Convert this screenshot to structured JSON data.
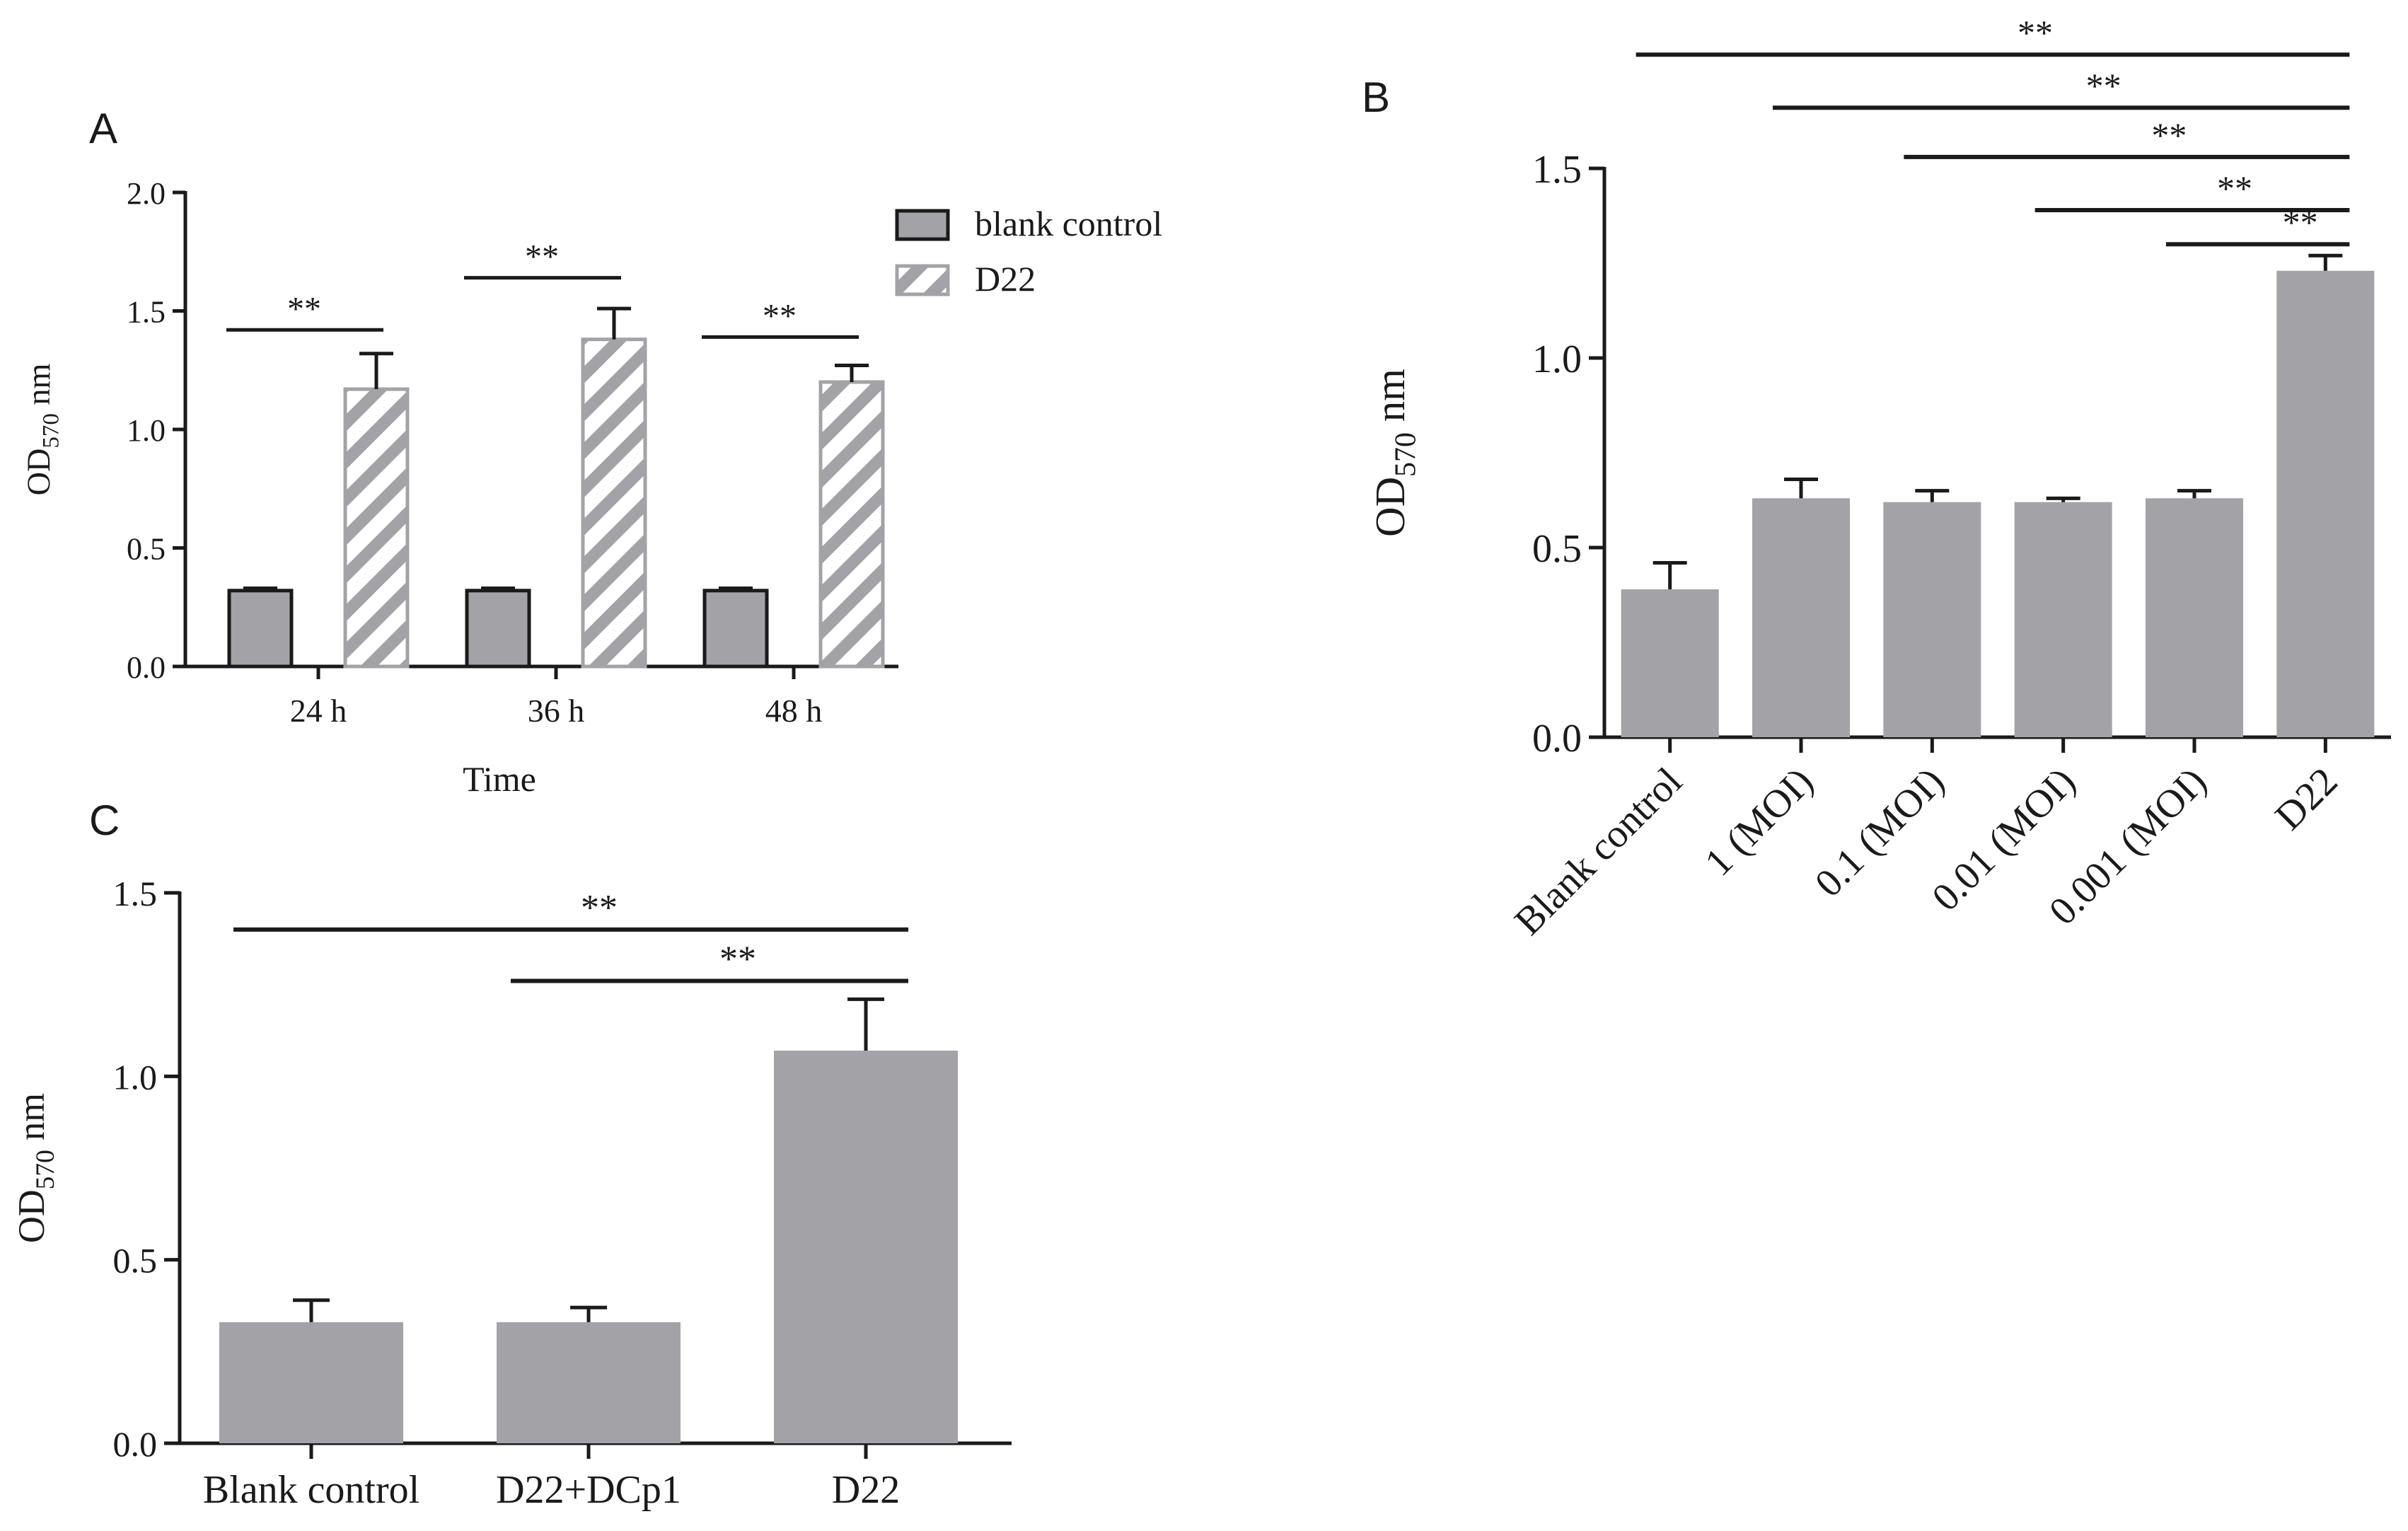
{
  "chart_data": [
    {
      "panel": "A",
      "type": "bar",
      "xlabel": "Time",
      "ylabel_main": "OD",
      "ylabel_sub": "570",
      "ylabel_unit": " nm",
      "ylim": [
        0,
        2.0
      ],
      "yticks": [
        0.0,
        0.5,
        1.0,
        1.5,
        2.0
      ],
      "ytick_labels": [
        "0.0",
        "0.5",
        "1.0",
        "1.5",
        "2.0"
      ],
      "categories": [
        "24 h",
        "36 h",
        "48 h"
      ],
      "legend_position": "top-right",
      "series": [
        {
          "name": "blank control",
          "values": [
            0.32,
            0.32,
            0.32
          ],
          "errors": [
            0.01,
            0.01,
            0.01
          ],
          "fill": "#a3a3a7",
          "pattern": "solid"
        },
        {
          "name": "D22",
          "values": [
            1.17,
            1.38,
            1.2
          ],
          "errors": [
            0.15,
            0.13,
            0.07
          ],
          "fill": "#a3a3a7",
          "pattern": "hatched"
        }
      ],
      "significance": [
        {
          "label": "**",
          "from": 0,
          "to": 0,
          "y": 1.42
        },
        {
          "label": "**",
          "from": 1,
          "to": 1,
          "y": 1.64
        },
        {
          "label": "**",
          "from": 2,
          "to": 2,
          "y": 1.39
        }
      ]
    },
    {
      "panel": "B",
      "type": "bar",
      "ylabel_main": "OD",
      "ylabel_sub": "570",
      "ylabel_unit": " nm",
      "ylim": [
        0,
        1.5
      ],
      "yticks": [
        0.0,
        0.5,
        1.0,
        1.5
      ],
      "ytick_labels": [
        "0.0",
        "0.5",
        "1.0",
        "1.5"
      ],
      "categories": [
        "Blank control",
        "1 (MOI)",
        "0.1 (MOI)",
        "0.01 (MOI)",
        "0.001 (MOI)",
        "D22"
      ],
      "values": [
        0.39,
        0.63,
        0.62,
        0.62,
        0.63,
        1.23
      ],
      "errors": [
        0.07,
        0.05,
        0.03,
        0.01,
        0.02,
        0.04
      ],
      "color": "#a3a3a7",
      "significance": [
        {
          "label": "**",
          "from": 0,
          "to": 5,
          "y": 1.8
        },
        {
          "label": "**",
          "from": 1,
          "to": 5,
          "y": 1.66
        },
        {
          "label": "**",
          "from": 2,
          "to": 5,
          "y": 1.53
        },
        {
          "label": "**",
          "from": 3,
          "to": 5,
          "y": 1.39
        },
        {
          "label": "**",
          "from": 4,
          "to": 5,
          "y": 1.3
        }
      ]
    },
    {
      "panel": "C",
      "type": "bar",
      "ylabel_main": "OD",
      "ylabel_sub": "570",
      "ylabel_unit": " nm",
      "ylim": [
        0,
        1.5
      ],
      "yticks": [
        0.0,
        0.5,
        1.0,
        1.5
      ],
      "ytick_labels": [
        "0.0",
        "0.5",
        "1.0",
        "1.5"
      ],
      "categories": [
        "Blank control",
        "D22+DCp1",
        "D22"
      ],
      "values": [
        0.33,
        0.33,
        1.07
      ],
      "errors": [
        0.06,
        0.04,
        0.14
      ],
      "color": "#a3a3a7",
      "significance": [
        {
          "label": "**",
          "from": 0,
          "to": 2,
          "y": 1.4
        },
        {
          "label": "**",
          "from": 1,
          "to": 2,
          "y": 1.26
        }
      ]
    }
  ]
}
